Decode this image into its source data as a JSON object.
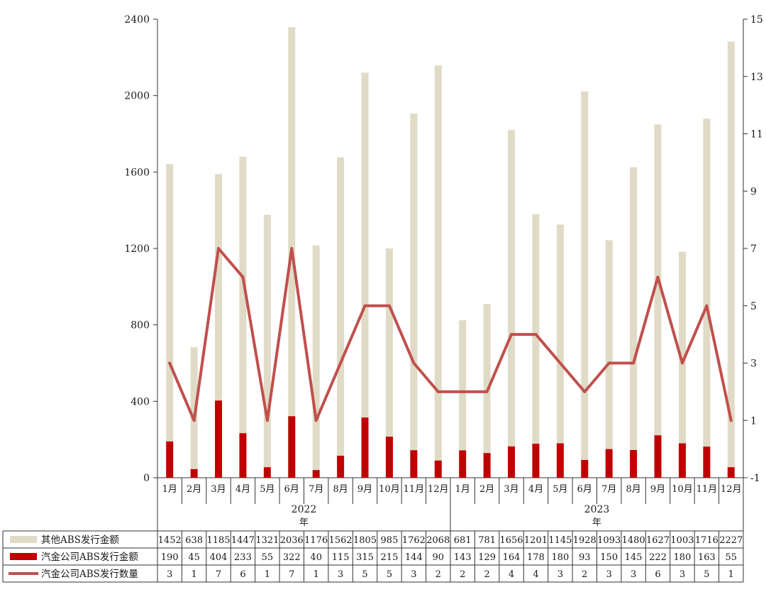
{
  "chart_data": {
    "type": "bar",
    "stacked": true,
    "legend_placement": "table-left",
    "grid": false,
    "categories": [
      "1月",
      "2月",
      "3月",
      "4月",
      "5月",
      "6月",
      "7月",
      "8月",
      "9月",
      "10月",
      "11月",
      "12月",
      "1月",
      "2月",
      "3月",
      "4月",
      "5月",
      "6月",
      "7月",
      "8月",
      "9月",
      "10月",
      "11月",
      "12月"
    ],
    "groups": [
      {
        "label": "2022",
        "sub": "年"
      },
      {
        "label": "2023",
        "sub": "年"
      }
    ],
    "y_left": {
      "ticks": [
        "0",
        "400",
        "800",
        "1200",
        "1600",
        "2000",
        "2400"
      ],
      "ylim": [
        0,
        2400
      ]
    },
    "y_right": {
      "ticks": [
        "-1",
        "1",
        "3",
        "5",
        "7",
        "9",
        "11",
        "13",
        "15"
      ],
      "ylim": [
        -1,
        15
      ]
    },
    "series": [
      {
        "name": "其他ABS发行金额",
        "kind": "bar",
        "axis": "left",
        "color": "#e0dbc6",
        "values": [
          1452,
          638,
          1185,
          1447,
          1321,
          2036,
          1176,
          1562,
          1805,
          985,
          1762,
          2068,
          681,
          781,
          1656,
          1201,
          1145,
          1928,
          1093,
          1480,
          1627,
          1003,
          1716,
          2227
        ]
      },
      {
        "name": "汽金公司ABS发行金额",
        "kind": "bar",
        "axis": "left",
        "color": "#c00000",
        "values": [
          190,
          45,
          404,
          233,
          55,
          322,
          40,
          115,
          315,
          215,
          144,
          90,
          143,
          129,
          164,
          178,
          180,
          93,
          150,
          145,
          222,
          180,
          163,
          55
        ]
      },
      {
        "name": "汽金公司ABS发行数量",
        "kind": "line",
        "axis": "right",
        "color": "#c0504d",
        "values": [
          3,
          1,
          7,
          6,
          1,
          7,
          1,
          3,
          5,
          5,
          3,
          2,
          2,
          2,
          4,
          4,
          3,
          2,
          3,
          3,
          6,
          3,
          5,
          1
        ]
      }
    ]
  }
}
